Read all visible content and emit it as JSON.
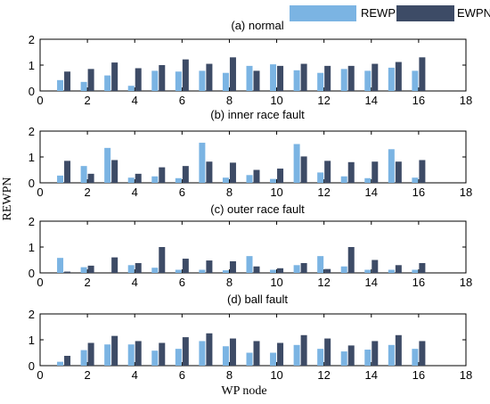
{
  "colors": {
    "REWPN": "#7bb4e3",
    "EWPN": "#3d4b66",
    "axis": "#000000"
  },
  "legend": {
    "placement": "top-right"
  },
  "chart_data": {
    "type": "bar",
    "xlabel": "WP node",
    "ylabel": "REWPN",
    "xlim": [
      0,
      18
    ],
    "ylim": [
      0,
      2
    ],
    "xticks": [
      0,
      2,
      4,
      6,
      8,
      10,
      12,
      14,
      16,
      18
    ],
    "yticks": [
      0,
      1,
      2
    ],
    "grid": false,
    "categories": [
      1,
      2,
      3,
      4,
      5,
      6,
      7,
      8,
      9,
      10,
      11,
      12,
      13,
      14,
      15,
      16
    ],
    "series_names": [
      "REWPN",
      "EWPN"
    ],
    "panels": [
      {
        "title": "(a) normal",
        "series": [
          {
            "name": "REWPN",
            "values": [
              0.42,
              0.35,
              0.6,
              0.2,
              0.78,
              0.75,
              0.78,
              0.7,
              0.97,
              1.03,
              0.8,
              0.7,
              0.85,
              0.78,
              0.9,
              0.78
            ]
          },
          {
            "name": "EWPN",
            "values": [
              0.75,
              0.85,
              1.1,
              0.88,
              1.0,
              1.22,
              1.05,
              1.3,
              0.78,
              0.97,
              1.05,
              0.97,
              0.97,
              1.05,
              1.12,
              1.3
            ]
          }
        ]
      },
      {
        "title": "(b) inner race fault",
        "series": [
          {
            "name": "REWPN",
            "values": [
              0.28,
              0.65,
              1.35,
              0.2,
              0.25,
              0.18,
              1.55,
              0.2,
              0.3,
              0.15,
              1.5,
              0.4,
              0.25,
              0.18,
              1.3,
              0.2
            ]
          },
          {
            "name": "EWPN",
            "values": [
              0.85,
              0.35,
              0.88,
              0.35,
              0.6,
              0.65,
              0.82,
              0.78,
              0.5,
              0.55,
              1.02,
              0.85,
              0.8,
              0.82,
              0.82,
              0.88
            ]
          }
        ]
      },
      {
        "title": "(c) outer race fault",
        "series": [
          {
            "name": "REWPN",
            "values": [
              0.58,
              0.22,
              0.0,
              0.3,
              0.2,
              0.12,
              0.12,
              0.1,
              0.65,
              0.12,
              0.3,
              0.65,
              0.25,
              0.12,
              0.12,
              0.12
            ]
          },
          {
            "name": "EWPN",
            "values": [
              0.05,
              0.28,
              0.6,
              0.38,
              1.0,
              0.55,
              0.48,
              0.45,
              0.25,
              0.18,
              0.38,
              0.15,
              1.0,
              0.5,
              0.3,
              0.38
            ]
          }
        ]
      },
      {
        "title": "(d) ball fault",
        "series": [
          {
            "name": "REWPN",
            "values": [
              0.15,
              0.6,
              0.82,
              0.82,
              0.58,
              0.65,
              0.95,
              0.75,
              0.5,
              0.5,
              0.8,
              0.65,
              0.55,
              0.62,
              0.8,
              0.65
            ]
          },
          {
            "name": "EWPN",
            "values": [
              0.38,
              0.88,
              1.15,
              0.95,
              0.88,
              1.1,
              1.25,
              1.05,
              0.95,
              0.88,
              1.18,
              1.05,
              0.78,
              0.95,
              1.18,
              0.95
            ]
          }
        ]
      }
    ]
  }
}
